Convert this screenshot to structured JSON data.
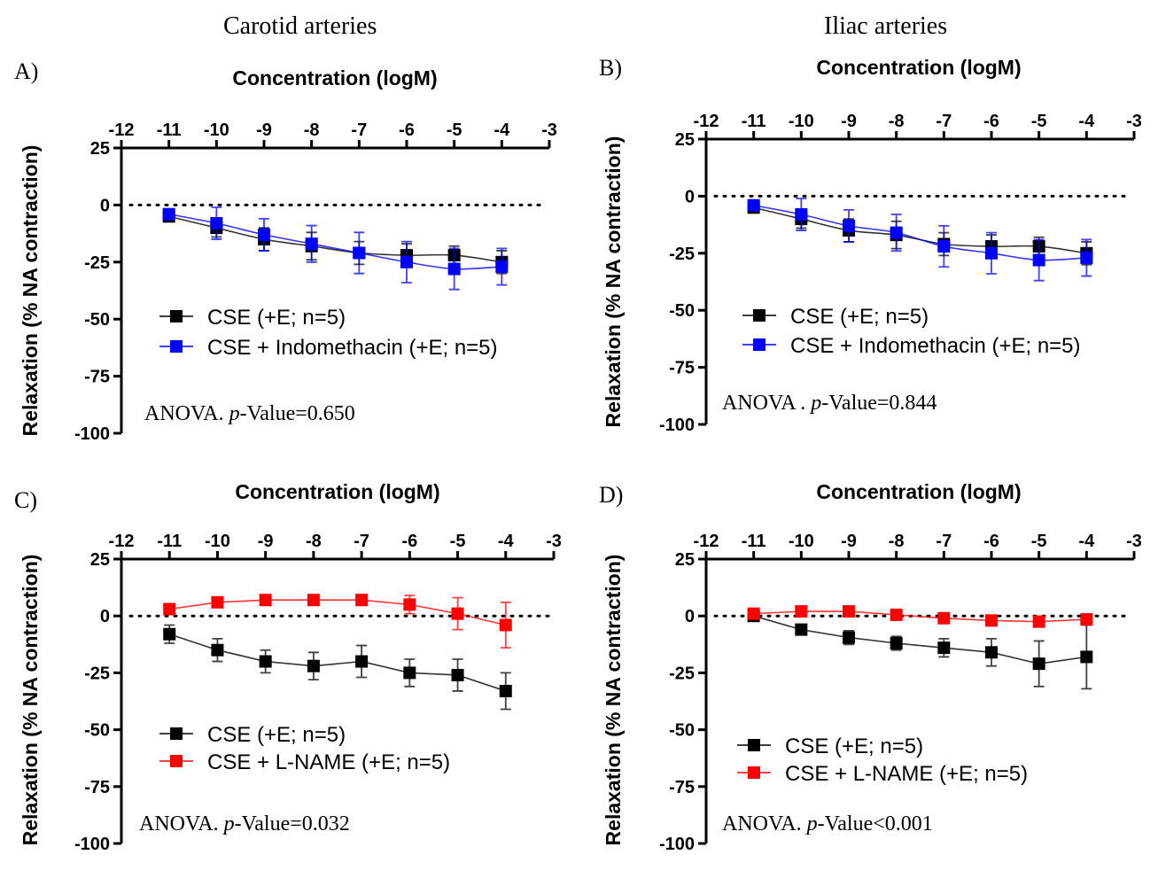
{
  "column_titles": [
    "Carotid arteries",
    "Iliac arteries"
  ],
  "colors": {
    "cse": "#000000",
    "indomethacin": "#0000ff",
    "lname": "#ff0000"
  },
  "chart_data": [
    {
      "type": "line",
      "panel_label": "A)",
      "title": "Concentration (logM)",
      "xlabel": "Concentration (logM)",
      "ylabel": "Relaxation (% NA contraction)",
      "xlim": [
        -12,
        -3
      ],
      "ylim": [
        -100,
        25
      ],
      "xticks": [
        -12,
        -11,
        -10,
        -9,
        -8,
        -7,
        -6,
        -5,
        -4,
        -3
      ],
      "yticks": [
        25,
        0,
        -25,
        -50,
        -75,
        -100
      ],
      "reference_line": 0,
      "grid": false,
      "legend": "middle-left",
      "annotation": {
        "prefix": "ANOVA. ",
        "italic": "p",
        "suffix": "-Value=0.650"
      },
      "x": [
        -11,
        -10,
        -9,
        -8,
        -7,
        -6,
        -5,
        -4
      ],
      "series": [
        {
          "name": "CSE (+E; n=5)",
          "color": "#000000",
          "fit": true,
          "values": [
            -5,
            -10,
            -15,
            -18,
            -21,
            -22,
            -22,
            -25
          ],
          "errors": [
            2,
            4,
            5,
            6,
            5,
            5,
            4,
            5
          ]
        },
        {
          "name": "CSE + Indomethacin (+E; n=5)",
          "color": "#0000ff",
          "fit": true,
          "values": [
            -4,
            -8,
            -13,
            -17,
            -21,
            -25,
            -28,
            -27
          ],
          "errors": [
            2,
            7,
            7,
            8,
            9,
            9,
            9,
            8
          ]
        }
      ]
    },
    {
      "type": "line",
      "panel_label": "B)",
      "title": "Concentration (logM)",
      "xlabel": "Concentration (logM)",
      "ylabel": "Relaxation (% NA contraction)",
      "xlim": [
        -12,
        -3
      ],
      "ylim": [
        -100,
        25
      ],
      "xticks": [
        -12,
        -11,
        -10,
        -9,
        -8,
        -7,
        -6,
        -5,
        -4,
        -3
      ],
      "yticks": [
        25,
        0,
        -25,
        -50,
        -75,
        -100
      ],
      "reference_line": 0,
      "grid": false,
      "legend": "middle-left",
      "annotation": {
        "prefix": "ANOVA . ",
        "italic": "p",
        "suffix": "-Value=0.844"
      },
      "x": [
        -11,
        -10,
        -9,
        -8,
        -7,
        -6,
        -5,
        -4
      ],
      "series": [
        {
          "name": "CSE (+E; n=5)",
          "color": "#000000",
          "fit": true,
          "values": [
            -5,
            -10,
            -15,
            -17,
            -21,
            -22,
            -22,
            -25
          ],
          "errors": [
            2,
            4,
            5,
            6,
            5,
            5,
            4,
            5
          ]
        },
        {
          "name": "CSE + Indomethacin (+E; n=5)",
          "color": "#0000ff",
          "fit": true,
          "values": [
            -4,
            -8,
            -13,
            -16,
            -22,
            -25,
            -28,
            -27
          ],
          "errors": [
            2,
            7,
            7,
            8,
            9,
            9,
            9,
            8
          ]
        }
      ]
    },
    {
      "type": "line",
      "panel_label": "C)",
      "title": "Concentration (logM)",
      "xlabel": "Concentration (logM)",
      "ylabel": "Relaxation (% NA contraction)",
      "xlim": [
        -12,
        -3
      ],
      "ylim": [
        -100,
        25
      ],
      "xticks": [
        -12,
        -11,
        -10,
        -9,
        -8,
        -7,
        -6,
        -5,
        -4,
        -3
      ],
      "yticks": [
        25,
        0,
        -25,
        -50,
        -75,
        -100
      ],
      "reference_line": 0,
      "grid": false,
      "legend": "middle-left",
      "annotation": {
        "prefix": "ANOVA. ",
        "italic": "p",
        "suffix": "-Value=0.032"
      },
      "x": [
        -11,
        -10,
        -9,
        -8,
        -7,
        -6,
        -5,
        -4
      ],
      "series": [
        {
          "name": "CSE (+E; n=5)",
          "color": "#000000",
          "fit": false,
          "values": [
            -8,
            -15,
            -20,
            -22,
            -20,
            -25,
            -26,
            -33
          ],
          "errors": [
            4,
            5,
            5,
            6,
            7,
            6,
            7,
            8
          ]
        },
        {
          "name": "CSE + L-NAME (+E; n=5)",
          "color": "#ff0000",
          "fit": false,
          "values": [
            3,
            6,
            7,
            7,
            7,
            5,
            1,
            -4
          ],
          "errors": [
            1,
            1,
            1,
            1,
            1,
            4,
            7,
            10
          ]
        }
      ]
    },
    {
      "type": "line",
      "panel_label": "D)",
      "title": "Concentration (logM)",
      "xlabel": "Concentration (logM)",
      "ylabel": "Relaxation (% NA contraction)",
      "xlim": [
        -12,
        -3
      ],
      "ylim": [
        -100,
        25
      ],
      "xticks": [
        -12,
        -11,
        -10,
        -9,
        -8,
        -7,
        -6,
        -5,
        -4,
        -3
      ],
      "yticks": [
        25,
        0,
        -25,
        -50,
        -75,
        -100
      ],
      "reference_line": 0,
      "grid": false,
      "legend": "middle-left",
      "annotation": {
        "prefix": "ANOVA. ",
        "italic": "p",
        "suffix": "-Value<0.001"
      },
      "x": [
        -11,
        -10,
        -9,
        -8,
        -7,
        -6,
        -5,
        -4
      ],
      "series": [
        {
          "name": "CSE (+E; n=5)",
          "color": "#000000",
          "fit": false,
          "values": [
            0,
            -6,
            -9.5,
            -12,
            -14,
            -16,
            -21,
            -18
          ],
          "errors": [
            1,
            1,
            3,
            3,
            4,
            6,
            10,
            14
          ]
        },
        {
          "name": "CSE + L-NAME (+E; n=5)",
          "color": "#ff0000",
          "fit": false,
          "values": [
            1,
            2,
            2,
            0.5,
            -1,
            -2,
            -2.5,
            -1.5
          ],
          "errors": [
            0.5,
            0.5,
            0.5,
            0.5,
            0.5,
            0.5,
            0.5,
            0.5
          ]
        }
      ]
    }
  ]
}
